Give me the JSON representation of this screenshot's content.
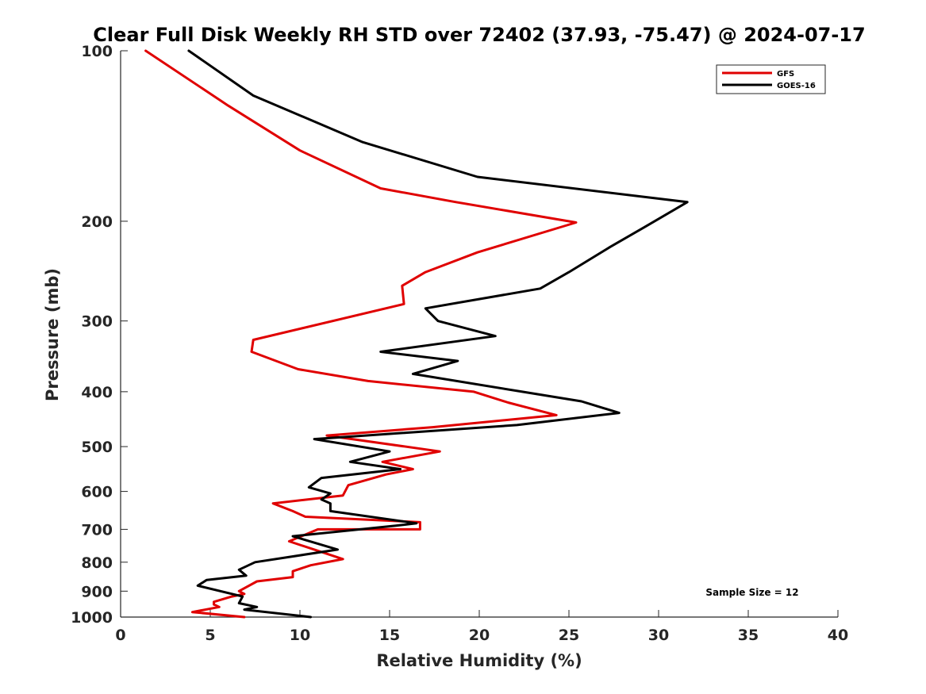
{
  "chart_data": {
    "type": "line",
    "title": "Clear Full Disk Weekly RH STD over 72402 (37.93, -75.47) @ 2024-07-17",
    "xlabel": "Relative Humidity (%)",
    "ylabel": "Pressure (mb)",
    "xlim": [
      0,
      40
    ],
    "ylim": [
      100,
      1000
    ],
    "yscale": "log",
    "y_reversed": true,
    "x_ticks": [
      0,
      5,
      10,
      15,
      20,
      25,
      30,
      35,
      40
    ],
    "x_tick_labels": [
      "0",
      "5",
      "10",
      "15",
      "20",
      "25",
      "30",
      "35",
      "40"
    ],
    "y_ticks": [
      100,
      200,
      300,
      400,
      500,
      600,
      700,
      800,
      900,
      1000
    ],
    "y_tick_labels": [
      "100",
      "200",
      "300",
      "400",
      "500",
      "600",
      "700",
      "800",
      "900",
      "1000"
    ],
    "grid": false,
    "legend_position": "top-right",
    "annotation": "Sample Size = 12",
    "series": [
      {
        "name": "GFS",
        "color": "#e00000",
        "points": [
          [
            1.4,
            100
          ],
          [
            6.0,
            125
          ],
          [
            10.0,
            150
          ],
          [
            14.5,
            175
          ],
          [
            18.7,
            185
          ],
          [
            25.4,
            201
          ],
          [
            19.9,
            227
          ],
          [
            17.0,
            246
          ],
          [
            15.7,
            260
          ],
          [
            15.8,
            280
          ],
          [
            7.4,
            324
          ],
          [
            7.3,
            340
          ],
          [
            9.9,
            365
          ],
          [
            13.8,
            383
          ],
          [
            19.7,
            400
          ],
          [
            21.6,
            418
          ],
          [
            24.3,
            440
          ],
          [
            17.4,
            462
          ],
          [
            11.5,
            478
          ],
          [
            17.8,
            510
          ],
          [
            14.6,
            532
          ],
          [
            16.3,
            548
          ],
          [
            14.8,
            560
          ],
          [
            12.7,
            585
          ],
          [
            12.4,
            610
          ],
          [
            8.5,
            630
          ],
          [
            9.6,
            650
          ],
          [
            10.3,
            665
          ],
          [
            16.7,
            680
          ],
          [
            16.7,
            700
          ],
          [
            11.0,
            700
          ],
          [
            9.4,
            735
          ],
          [
            10.8,
            760
          ],
          [
            12.4,
            790
          ],
          [
            10.6,
            810
          ],
          [
            9.6,
            830
          ],
          [
            9.6,
            850
          ],
          [
            7.6,
            865
          ],
          [
            6.6,
            900
          ],
          [
            6.9,
            910
          ],
          [
            6.2,
            920
          ],
          [
            5.2,
            940
          ],
          [
            5.2,
            950
          ],
          [
            5.5,
            960
          ],
          [
            4.0,
            980
          ],
          [
            6.9,
            1000
          ]
        ]
      },
      {
        "name": "GOES-16",
        "color": "#000000",
        "points": [
          [
            3.8,
            100
          ],
          [
            7.4,
            120
          ],
          [
            13.5,
            145
          ],
          [
            19.9,
            167
          ],
          [
            31.6,
            185
          ],
          [
            29.2,
            205
          ],
          [
            27.3,
            222
          ],
          [
            25.0,
            246
          ],
          [
            23.4,
            263
          ],
          [
            17.0,
            285
          ],
          [
            17.7,
            300
          ],
          [
            20.9,
            319
          ],
          [
            14.5,
            340
          ],
          [
            18.8,
            353
          ],
          [
            16.3,
            372
          ],
          [
            22.4,
            400
          ],
          [
            25.7,
            416
          ],
          [
            27.8,
            436
          ],
          [
            22.1,
            458
          ],
          [
            10.8,
            485
          ],
          [
            15.0,
            510
          ],
          [
            12.8,
            532
          ],
          [
            15.6,
            548
          ],
          [
            11.2,
            568
          ],
          [
            10.5,
            590
          ],
          [
            11.7,
            605
          ],
          [
            11.2,
            620
          ],
          [
            11.7,
            630
          ],
          [
            11.7,
            650
          ],
          [
            16.5,
            683
          ],
          [
            15.3,
            690
          ],
          [
            9.6,
            720
          ],
          [
            12.1,
            760
          ],
          [
            7.5,
            800
          ],
          [
            6.6,
            825
          ],
          [
            7.0,
            845
          ],
          [
            4.8,
            860
          ],
          [
            4.3,
            880
          ],
          [
            6.8,
            920
          ],
          [
            6.6,
            945
          ],
          [
            7.6,
            960
          ],
          [
            6.9,
            970
          ],
          [
            10.6,
            1000
          ]
        ]
      }
    ]
  }
}
